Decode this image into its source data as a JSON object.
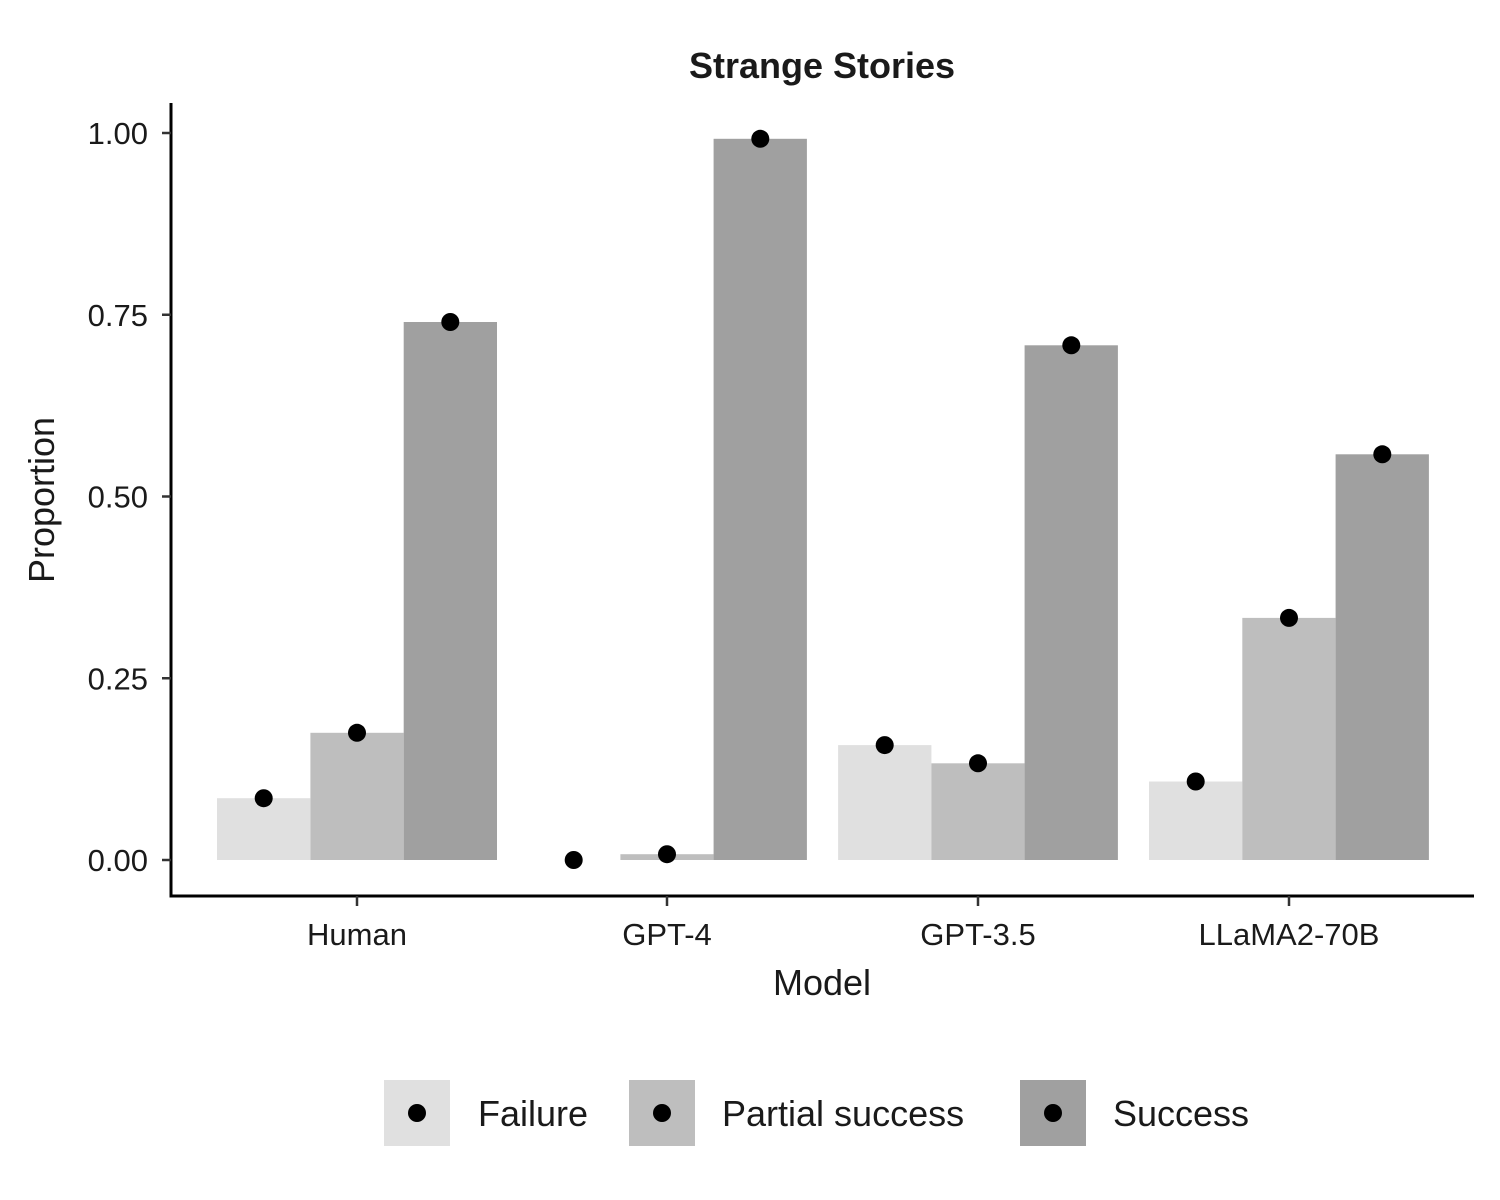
{
  "chart_data": {
    "type": "bar",
    "title": "Strange Stories",
    "xlabel": "Model",
    "ylabel": "Proportion",
    "categories": [
      "Human",
      "GPT-4",
      "GPT-3.5",
      "LLaMA2-70B"
    ],
    "series": [
      {
        "name": "Failure",
        "color": "#e0e0e0",
        "values": [
          0.085,
          0.0,
          0.158,
          0.108
        ]
      },
      {
        "name": "Partial success",
        "color": "#bebebe",
        "values": [
          0.175,
          0.008,
          0.133,
          0.333
        ]
      },
      {
        "name": "Success",
        "color": "#a0a0a0",
        "values": [
          0.74,
          0.992,
          0.708,
          0.558
        ]
      }
    ],
    "ylim": [
      0,
      1
    ],
    "yticks": [
      "0.00",
      "0.25",
      "0.50",
      "0.75",
      "1.00"
    ],
    "point_marker": "filled-circle",
    "point_color": "#000000",
    "grid": false,
    "legend_position": "bottom"
  }
}
